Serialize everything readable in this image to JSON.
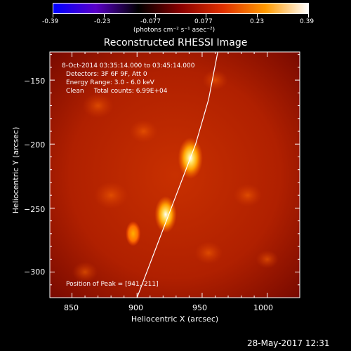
{
  "colorbar": {
    "ticks": [
      "-0.39",
      "-0.23",
      "-0.077",
      "0.077",
      "0.23",
      "0.39"
    ],
    "units": "(photons cm⁻² s⁻¹ asec⁻²)",
    "range": [
      -0.39,
      0.39
    ],
    "colors": [
      "#0000ff",
      "#5a00c8",
      "#000000",
      "#8a0000",
      "#e03000",
      "#ff9a00",
      "#ffffff"
    ]
  },
  "info": {
    "time": "8-Oct-2014 03:35:14.000 to 03:45:14.000",
    "detectors": "Detectors: 3F 6F 9F, Att 0",
    "energy": "Energy Range: 3.0 - 6.0 keV",
    "clean": "Clean     Total counts: 6.99E+04",
    "peak": "Position of Peak = [941,-211]"
  },
  "timestamp": "28-May-2017 12:31",
  "chart_data": {
    "type": "heatmap",
    "title": "Reconstructed RHESSI Image",
    "xlabel": "Heliocentric X (arcsec)",
    "ylabel": "Heliocentric Y (arcsec)",
    "xlim": [
      833,
      1025
    ],
    "ylim": [
      -320,
      -128
    ],
    "xticks": [
      850,
      900,
      950,
      1000
    ],
    "yticks": [
      -300,
      -250,
      -200,
      -150
    ],
    "xtick_labels": [
      "850",
      "900",
      "950",
      "1000"
    ],
    "ytick_labels": [
      "−300",
      "−250",
      "−200",
      "−150"
    ],
    "peak": [
      941,
      -211
    ],
    "sources": [
      {
        "x": 941,
        "y": -211,
        "intensity": 0.39
      },
      {
        "x": 922,
        "y": -255,
        "intensity": 0.33
      },
      {
        "x": 897,
        "y": -270,
        "intensity": 0.18
      }
    ],
    "limb_curve": [
      [
        900,
        -320
      ],
      [
        915,
        -280
      ],
      [
        930,
        -240
      ],
      [
        945,
        -200
      ],
      [
        955,
        -165
      ],
      [
        962,
        -128
      ]
    ]
  }
}
